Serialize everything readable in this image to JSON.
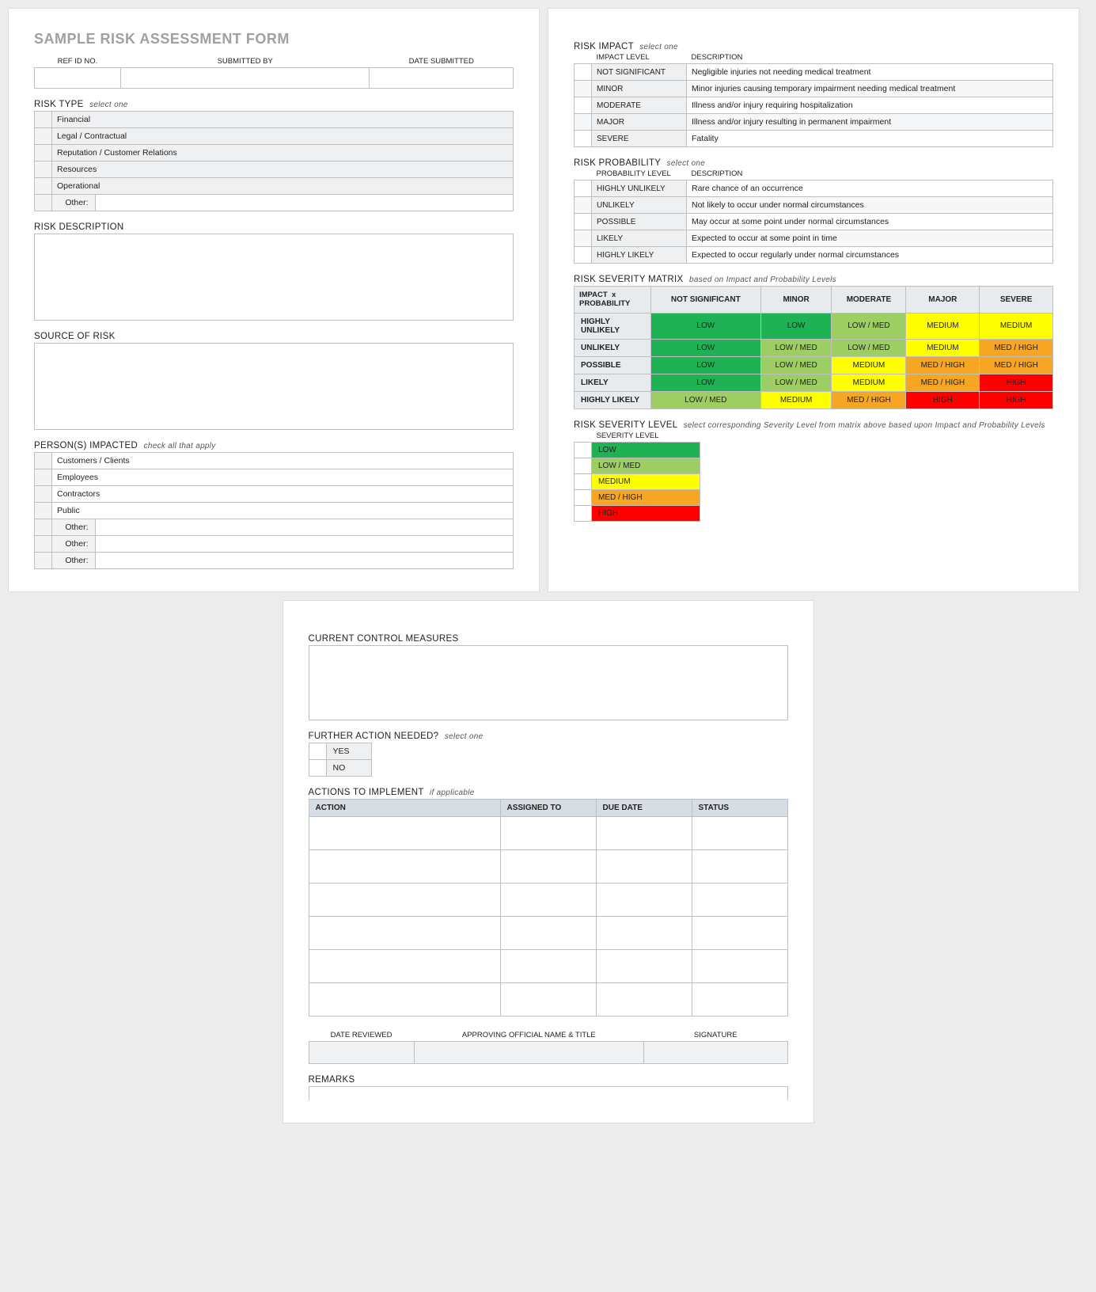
{
  "title": "SAMPLE RISK ASSESSMENT FORM",
  "header_fields": {
    "ref_id": "REF ID NO.",
    "submitted_by": "SUBMITTED BY",
    "date_submitted": "DATE SUBMITTED"
  },
  "risk_type": {
    "label": "RISK TYPE",
    "sub": "select one",
    "items": [
      "Financial",
      "Legal / Contractual",
      "Reputation / Customer Relations",
      "Resources",
      "Operational"
    ],
    "other_label": "Other:"
  },
  "risk_description_label": "RISK DESCRIPTION",
  "source_of_risk_label": "SOURCE OF RISK",
  "persons_impacted": {
    "label": "PERSON(S) IMPACTED",
    "sub": "check all that apply",
    "items": [
      "Customers / Clients",
      "Employees",
      "Contractors",
      "Public"
    ],
    "other_label": "Other:",
    "other_count": 3
  },
  "risk_impact": {
    "label": "RISK IMPACT",
    "sub": "select one",
    "col_level": "IMPACT LEVEL",
    "col_desc": "DESCRIPTION",
    "rows": [
      {
        "level": "NOT SIGNIFICANT",
        "desc": "Negligible injuries not needing medical treatment"
      },
      {
        "level": "MINOR",
        "desc": "Minor injuries causing temporary impairment needing medical treatment"
      },
      {
        "level": "MODERATE",
        "desc": "Illness and/or injury requiring hospitalization"
      },
      {
        "level": "MAJOR",
        "desc": "Illness and/or injury resulting in permanent impairment"
      },
      {
        "level": "SEVERE",
        "desc": "Fatality"
      }
    ]
  },
  "risk_probability": {
    "label": "RISK PROBABILITY",
    "sub": "select one",
    "col_level": "PROBABILITY LEVEL",
    "col_desc": "DESCRIPTION",
    "rows": [
      {
        "level": "HIGHLY UNLIKELY",
        "desc": "Rare chance of an occurrence"
      },
      {
        "level": "UNLIKELY",
        "desc": "Not likely to occur under normal circumstances"
      },
      {
        "level": "POSSIBLE",
        "desc": "May occur at some point under normal circumstances"
      },
      {
        "level": "LIKELY",
        "desc": "Expected to occur at some point in time"
      },
      {
        "level": "HIGHLY LIKELY",
        "desc": "Expected to occur regularly under normal circumstances"
      }
    ]
  },
  "matrix": {
    "label": "RISK SEVERITY MATRIX",
    "sub": "based on Impact and Probability Levels",
    "corner": "IMPACT  x PROBABILITY",
    "impact_headers": [
      "NOT SIGNIFICANT",
      "MINOR",
      "MODERATE",
      "MAJOR",
      "SEVERE"
    ],
    "prob_headers": [
      "HIGHLY UNLIKELY",
      "UNLIKELY",
      "POSSIBLE",
      "LIKELY",
      "HIGHLY LIKELY"
    ],
    "cells": [
      [
        "LOW",
        "LOW",
        "LOW / MED",
        "MEDIUM",
        "MEDIUM"
      ],
      [
        "LOW",
        "LOW / MED",
        "LOW / MED",
        "MEDIUM",
        "MED / HIGH"
      ],
      [
        "LOW",
        "LOW / MED",
        "MEDIUM",
        "MED / HIGH",
        "MED / HIGH"
      ],
      [
        "LOW",
        "LOW / MED",
        "MEDIUM",
        "MED / HIGH",
        "HIGH"
      ],
      [
        "LOW / MED",
        "MEDIUM",
        "MED / HIGH",
        "HIGH",
        "HIGH"
      ]
    ],
    "colors": {
      "LOW": "#1fb254",
      "LOW / MED": "#9cce63",
      "MEDIUM": "#ffff00",
      "MED / HIGH": "#f6a623",
      "HIGH": "#ff0000"
    }
  },
  "severity_level": {
    "label": "RISK SEVERITY LEVEL",
    "sub": "select corresponding Severity Level from matrix above based upon Impact and Probability Levels",
    "col": "SEVERITY LEVEL",
    "levels": [
      "LOW",
      "LOW / MED",
      "MEDIUM",
      "MED / HIGH",
      "HIGH"
    ]
  },
  "page3": {
    "current_controls": "CURRENT CONTROL MEASURES",
    "further_action": {
      "label": "FURTHER ACTION NEEDED?",
      "sub": "select one",
      "yes": "YES",
      "no": "NO"
    },
    "actions": {
      "label": "ACTIONS TO IMPLEMENT",
      "sub": "if applicable",
      "headers": [
        "ACTION",
        "ASSIGNED TO",
        "DUE DATE",
        "STATUS"
      ],
      "row_count": 6
    },
    "signoff": {
      "date_reviewed": "DATE REVIEWED",
      "official": "APPROVING OFFICIAL NAME & TITLE",
      "signature": "SIGNATURE"
    },
    "remarks": "REMARKS"
  }
}
